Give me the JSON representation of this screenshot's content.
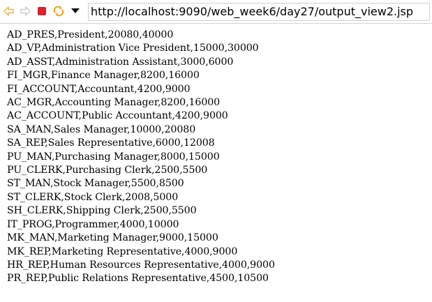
{
  "toolbar": {
    "back_icon": "back-arrow-icon",
    "forward_icon": "forward-arrow-icon",
    "stop_icon": "stop-icon",
    "refresh_icon": "refresh-icon",
    "menu_icon": "dropdown-triangle-icon",
    "stop_color": "#e0202a",
    "refresh_color": "#e8a317",
    "nav_color": "#e8b54a"
  },
  "address": {
    "url": "http://localhost:9090/web_week6/day27/output_view2.jsp"
  },
  "rows": [
    "AD_PRES,President,20080,40000",
    "AD_VP,Administration Vice President,15000,30000",
    "AD_ASST,Administration Assistant,3000,6000",
    "FI_MGR,Finance Manager,8200,16000",
    "FI_ACCOUNT,Accountant,4200,9000",
    "AC_MGR,Accounting Manager,8200,16000",
    "AC_ACCOUNT,Public Accountant,4200,9000",
    "SA_MAN,Sales Manager,10000,20080",
    "SA_REP,Sales Representative,6000,12008",
    "PU_MAN,Purchasing Manager,8000,15000",
    "PU_CLERK,Purchasing Clerk,2500,5500",
    "ST_MAN,Stock Manager,5500,8500",
    "ST_CLERK,Stock Clerk,2008,5000",
    "SH_CLERK,Shipping Clerk,2500,5500",
    "IT_PROG,Programmer,4000,10000",
    "MK_MAN,Marketing Manager,9000,15000",
    "MK_REP,Marketing Representative,4000,9000",
    "HR_REP,Human Resources Representative,4000,9000",
    "PR_REP,Public Relations Representative,4500,10500"
  ]
}
